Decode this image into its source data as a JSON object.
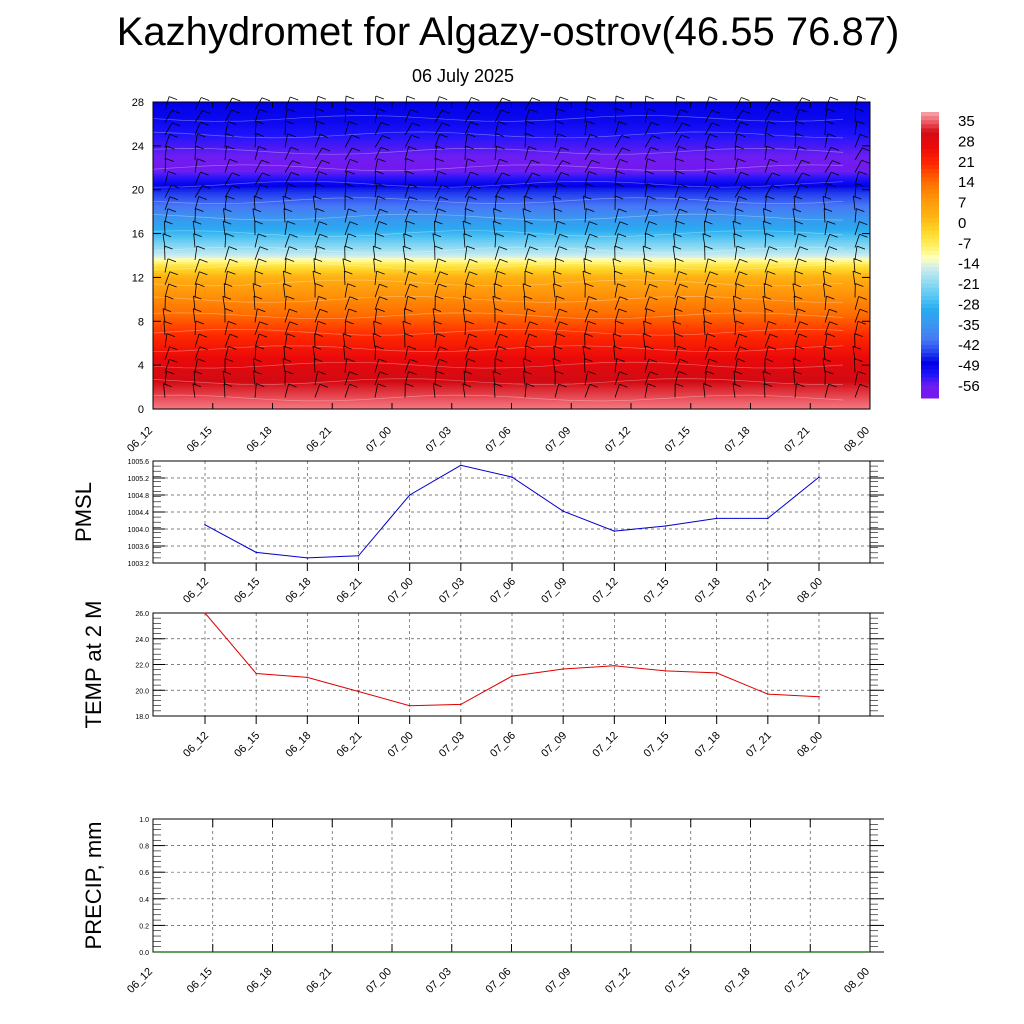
{
  "title": "Kazhydromet for Algazy-ostrov(46.55 76.87)",
  "subtitle": "06 July 2025",
  "colors": {
    "pmsl_line": "#0000cc",
    "temp_line": "#dd0000",
    "precip_line": "#006600",
    "grid": "#555555"
  },
  "chart_data": [
    {
      "type": "heatmap",
      "name": "upper-air-cross-section",
      "x_ticks": [
        "06_12",
        "06_15",
        "06_18",
        "06_21",
        "07_00",
        "07_03",
        "07_06",
        "07_09",
        "07_12",
        "07_15",
        "07_18",
        "07_21",
        "08_00"
      ],
      "y_ticks": [
        "0",
        "4",
        "8",
        "12",
        "16",
        "20",
        "24",
        "28"
      ],
      "ylim": [
        0,
        28
      ],
      "colorbar_labels": [
        "35",
        "28",
        "21",
        "14",
        "7",
        "0",
        "-7",
        "-14",
        "-21",
        "-28",
        "-35",
        "-42",
        "-49",
        "-56"
      ],
      "colorbar_range": [
        -60,
        38
      ],
      "temperature_profile": {
        "height": [
          0,
          2,
          4,
          6,
          8,
          10,
          12,
          13,
          14,
          16,
          18,
          20,
          22,
          24,
          26,
          28
        ],
        "value": [
          36,
          32,
          28,
          22,
          16,
          10,
          3,
          -5,
          -16,
          -28,
          -38,
          -46,
          -58,
          -54,
          -50,
          -48
        ]
      }
    },
    {
      "type": "line",
      "name": "pmsl",
      "ylabel": "PMSL",
      "x_ticks": [
        "06_12",
        "06_15",
        "06_18",
        "06_21",
        "07_00",
        "07_03",
        "07_06",
        "07_09",
        "07_12",
        "07_15",
        "07_18",
        "07_21",
        "08_00"
      ],
      "y_ticks": [
        "1003.2",
        "1003.6",
        "1004.0",
        "1004.4",
        "1004.8",
        "1005.2",
        "1005.6"
      ],
      "ylim": [
        1003.2,
        1005.6
      ],
      "values": [
        1004.1,
        1003.45,
        1003.32,
        1003.37,
        1004.8,
        1005.5,
        1005.22,
        1004.42,
        1003.95,
        1004.07,
        1004.25,
        1004.25,
        1005.22
      ]
    },
    {
      "type": "line",
      "name": "temperature-2m",
      "ylabel": "TEMP at 2 M",
      "x_ticks": [
        "06_12",
        "06_15",
        "06_18",
        "06_21",
        "07_00",
        "07_03",
        "07_06",
        "07_09",
        "07_12",
        "07_15",
        "07_18",
        "07_21",
        "08_00"
      ],
      "y_ticks": [
        "18.0",
        "20.0",
        "22.0",
        "24.0",
        "26.0"
      ],
      "ylim": [
        18,
        26
      ],
      "values": [
        26.0,
        21.3,
        21.0,
        19.9,
        18.8,
        18.9,
        21.1,
        21.65,
        21.9,
        21.5,
        21.35,
        19.7,
        19.5
      ]
    },
    {
      "type": "line",
      "name": "precipitation",
      "ylabel": "PRECIP, mm",
      "x_ticks": [
        "06_12",
        "06_15",
        "06_18",
        "06_21",
        "07_00",
        "07_03",
        "07_06",
        "07_09",
        "07_12",
        "07_15",
        "07_18",
        "07_21",
        "08_00"
      ],
      "y_ticks": [
        "0.0",
        "0.2",
        "0.4",
        "0.6",
        "0.8",
        "1.0"
      ],
      "ylim": [
        0,
        1
      ],
      "values": [
        0,
        0,
        0,
        0,
        0,
        0,
        0,
        0,
        0,
        0,
        0,
        0,
        0
      ]
    }
  ]
}
